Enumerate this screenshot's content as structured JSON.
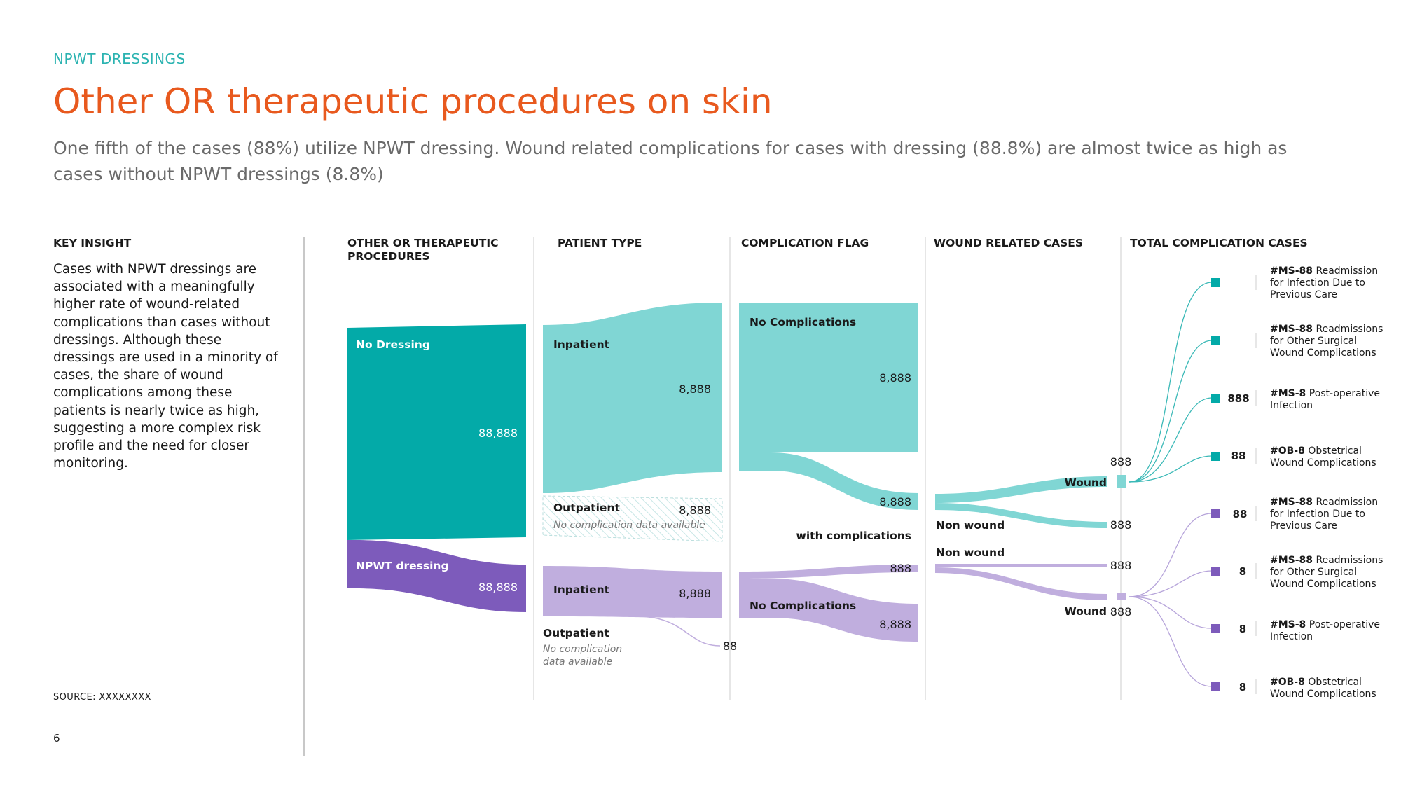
{
  "header": {
    "eyebrow": "NPWT DRESSINGS",
    "title": "Other OR therapeutic procedures on skin",
    "subtitle": "One fifth of the cases (88%) utilize NPWT dressing. Wound related complications for cases with dressing (88.8%) are almost twice as high as cases without NPWT dressings (8.8%)"
  },
  "key_insight": {
    "title": "KEY INSIGHT",
    "body": "Cases with NPWT dressings are associated with a meaningfully higher rate of wound-related complications than cases without dressings. Although these dressings are used in a minority of cases, the share of wound complications among these patients is nearly twice as high, suggesting a more complex risk profile and the need for closer monitoring."
  },
  "footer": {
    "source": "SOURCE:  XXXXXXXX",
    "page": "6"
  },
  "columns": [
    "OTHER OR THERAPEUTIC PROCEDURES",
    "PATIENT TYPE",
    "COMPLICATION FLAG",
    "WOUND RELATED CASES",
    "TOTAL COMPLICATION CASES"
  ],
  "colors": {
    "eyebrow": "#2bb3b1",
    "title": "#e8591e",
    "teal_dark": "#03aaa8",
    "teal_light": "#80d6d4",
    "purple_dark": "#7d5bbb",
    "purple_light": "#c0aede"
  },
  "nodes": {
    "no_dressing": {
      "label": "No Dressing",
      "value": "88,888"
    },
    "npwt_dressing": {
      "label": "NPWT dressing",
      "value": "88,888"
    },
    "teal_inpatient": {
      "label": "Inpatient",
      "value": "8,888"
    },
    "teal_outpatient": {
      "label": "Outpatient",
      "value": "8,888",
      "note": "No complication data available"
    },
    "purple_inpatient": {
      "label": "Inpatient",
      "value": "8,888"
    },
    "purple_outpatient": {
      "label": "Outpatient",
      "value": "88",
      "note_line1": "No complication",
      "note_line2": "data available"
    },
    "teal_no_complications": {
      "label": "No Complications",
      "value": "8,888"
    },
    "teal_with_complications": {
      "label": "with complications",
      "value": "8,888"
    },
    "purple_with_complications": {
      "value": "888"
    },
    "purple_no_complications": {
      "label": "No Complications",
      "value": "8,888"
    },
    "teal_wound": {
      "label": "Wound",
      "value": "888"
    },
    "teal_non_wound": {
      "label": "Non wound",
      "value": "888"
    },
    "purple_non_wound": {
      "label": "Non wound",
      "value": "888"
    },
    "purple_wound": {
      "label": "Wound",
      "value": "888"
    }
  },
  "complications": {
    "teal": [
      {
        "code": "#MS-88",
        "line1": "Readmission",
        "line2": "for Infection Due to",
        "line3": "Previous Care",
        "value": ""
      },
      {
        "code": "#MS-88",
        "line1": "Readmissions",
        "line2": "for Other Surgical",
        "line3": "Wound Complications",
        "value": ""
      },
      {
        "code": "#MS-8",
        "line1": "Post-operative",
        "line2": "Infection",
        "line3": "",
        "value": "888"
      },
      {
        "code": "#OB-8",
        "line1": "Obstetrical",
        "line2": "Wound Complications",
        "line3": "",
        "value": "88"
      }
    ],
    "purple": [
      {
        "code": "#MS-88",
        "line1": "Readmission",
        "line2": "for Infection Due to",
        "line3": "Previous Care",
        "value": "88"
      },
      {
        "code": "#MS-88",
        "line1": "Readmissions",
        "line2": "for Other Surgical",
        "line3": "Wound Complications",
        "value": "8"
      },
      {
        "code": "#MS-8",
        "line1": "Post-operative",
        "line2": "Infection",
        "line3": "",
        "value": "8"
      },
      {
        "code": "#OB-8",
        "line1": "Obstetrical",
        "line2": "Wound Complications",
        "line3": "",
        "value": "8"
      }
    ]
  }
}
